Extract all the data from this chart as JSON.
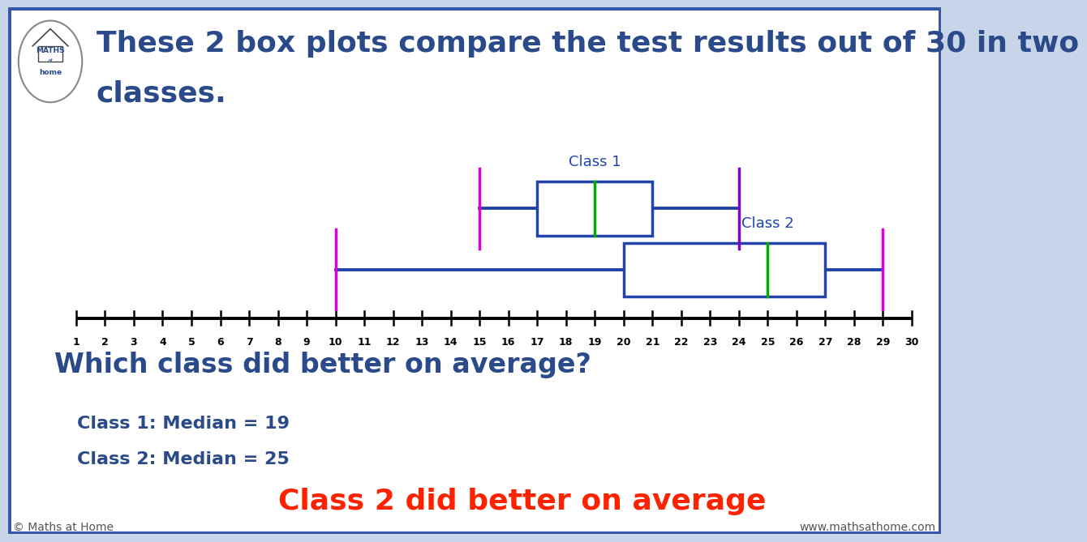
{
  "title_line1": "These 2 box plots compare the test results out of 30 in two",
  "title_line2": "classes.",
  "title_color": "#2a4a8a",
  "title_fontsize": 26,
  "bg_color": "#ffffff",
  "outer_bg_color": "#c8d4e8",
  "border_color": "#3355aa",
  "border_width": 5,
  "axis_min": 1,
  "axis_max": 30,
  "class1_label": "Class 1",
  "class2_label": "Class 2",
  "class1": {
    "min": 15,
    "q1": 17,
    "median": 19,
    "q3": 21,
    "max": 24
  },
  "class2": {
    "min": 10,
    "q1": 20,
    "median": 25,
    "q3": 27,
    "max": 29
  },
  "box_edge_color": "#2244aa",
  "box_face_color": "#ffffff",
  "median_color": "#00aa00",
  "whisker_color": "#2244aa",
  "fence_left_color": "#dd00dd",
  "fence_right_color_c1": "#8800cc",
  "fence_right_color_c2": "#dd00dd",
  "label_color": "#2244aa",
  "label_fontsize": 13,
  "question": "Which class did better on average?",
  "question_color": "#2a4a8a",
  "question_fontsize": 24,
  "answer_line1": "Class 1: Median = 19",
  "answer_line2": "Class 2: Median = 25",
  "answer_color": "#2a4a8a",
  "answer_fontsize": 16,
  "final_answer": "Class 2 did better on average",
  "final_answer_color": "#ff2200",
  "final_answer_fontsize": 26,
  "footer_left": "© Maths at Home",
  "footer_right": "www.mathsathome.com",
  "footer_color": "#555555",
  "footer_fontsize": 10
}
